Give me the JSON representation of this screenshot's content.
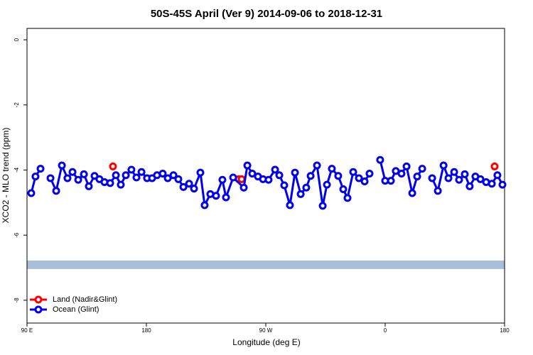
{
  "chart_data": {
    "type": "line",
    "title": "50S-45S April (Ver 9)   2014-09-06 to 2018-12-31",
    "x_label": "Longitude (deg E)",
    "y_label": "XCO2 - MLO trend (ppm)",
    "xlim": [
      90,
      450
    ],
    "xticks": [
      {
        "value": 90,
        "label": "90 E"
      },
      {
        "value": 180,
        "label": "180"
      },
      {
        "value": 270,
        "label": "90 W"
      },
      {
        "value": 360,
        "label": "0"
      },
      {
        "value": 450,
        "label": "180"
      }
    ],
    "extra_xticks": [
      {
        "value": 90,
        "label": "90 E"
      }
    ],
    "ylim": [
      -8.7,
      0.35
    ],
    "yticks": [
      0,
      -2,
      -4,
      -6,
      -8
    ],
    "legend": "bottom-left",
    "band": {
      "color": "#a8bfdc",
      "range": [
        -6.78,
        -7.04
      ]
    },
    "series": [
      {
        "name": "Land (Nadir&Glint)",
        "color": "#ff0000",
        "x": [
          154.8,
          200,
          249.6,
          251.8,
          300,
          442.5
        ],
        "values": [
          -3.89,
          null,
          -4.28,
          -4.28,
          null,
          -3.89
        ]
      },
      {
        "name": "Ocean (Glint)",
        "color": "#0000ee",
        "x": [
          93.2,
          96.4,
          100.2,
          104,
          107.7,
          112.0,
          116.3,
          120.5,
          124.3,
          128.6,
          132.9,
          136.6,
          140.9,
          144.6,
          148.4,
          152.7,
          157.0,
          160.7,
          164.5,
          168.7,
          172.5,
          176.3,
          180.5,
          184.3,
          188.0,
          192.3,
          196.1,
          200.4,
          204.1,
          207.9,
          212.2,
          215.9,
          220.7,
          223.9,
          228.2,
          232.5,
          237.3,
          240.0,
          245.4,
          253.4,
          256.1,
          259.8,
          264.1,
          267.9,
          272.1,
          277.0,
          280.2,
          283.9,
          288.2,
          292.0,
          296.3,
          300.5,
          303.8,
          308.6,
          312.9,
          316.1,
          319.8,
          324.6,
          328.4,
          331.6,
          335.9,
          340.2,
          344.5,
          348.2,
          352,
          356.2,
          360.0,
          364.3,
          368.0,
          372.3,
          376.1,
          380.4,
          384.1,
          387.9,
          392,
          395.4,
          399.7,
          404.0,
          407.7,
          412.0,
          415.7,
          420.0,
          423.7,
          428.0,
          431.8,
          436.1,
          440.4,
          444.6,
          448.4
        ],
        "values": [
          -4.71,
          -4.2,
          -3.96,
          null,
          -4.25,
          -4.64,
          -3.86,
          -4.25,
          -4.06,
          -4.3,
          -4.13,
          -4.5,
          -4.18,
          -4.28,
          -4.37,
          -4.4,
          -4.16,
          -4.45,
          -4.16,
          -3.99,
          -4.23,
          -4.06,
          -4.25,
          -4.25,
          -4.16,
          -4.11,
          -4.25,
          -4.16,
          -4.28,
          -4.52,
          -4.42,
          -4.57,
          -4.08,
          -5.08,
          -4.74,
          -4.79,
          -4.3,
          -4.84,
          -4.23,
          -4.54,
          -3.86,
          -4.11,
          -4.2,
          -4.28,
          -4.3,
          -3.99,
          -4.16,
          -4.47,
          -5.08,
          -4.08,
          -4.74,
          -4.54,
          -4.18,
          -3.86,
          -5.1,
          -4.45,
          -3.96,
          -4.18,
          -4.59,
          -4.86,
          -4.06,
          -4.25,
          -4.35,
          -4.11,
          null,
          -3.69,
          -4.33,
          -4.33,
          -4.03,
          -4.11,
          -3.89,
          -4.71,
          -4.2,
          -3.96,
          null,
          -4.25,
          -4.64,
          -3.86,
          -4.25,
          -4.06,
          -4.3,
          -4.13,
          -4.5,
          -4.2,
          -4.28,
          -4.37,
          -4.42,
          -4.16,
          -4.45
        ]
      }
    ]
  }
}
